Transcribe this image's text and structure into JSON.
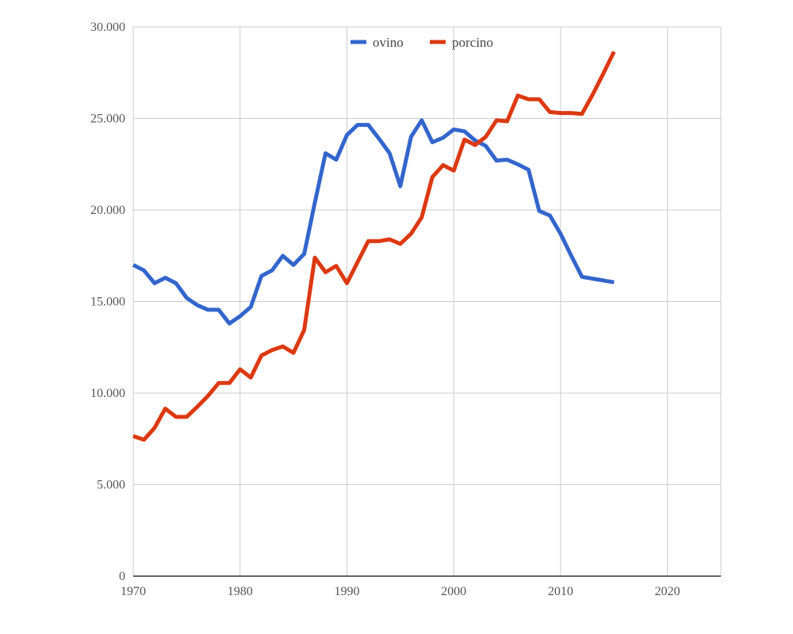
{
  "colors": {
    "background": "#ffffff",
    "grid": "#cccccc",
    "axis": "#333333",
    "ovino": "#3366cc",
    "porcino": "#dc3912"
  },
  "legend": {
    "placement": "top-center",
    "items": [
      {
        "label": "ovino",
        "color": "#3366cc"
      },
      {
        "label": "porcino",
        "color": "#dc3912"
      }
    ]
  },
  "chart_data": {
    "type": "line",
    "title": "",
    "xlabel": "",
    "ylabel": "",
    "xlim": [
      1970,
      2025
    ],
    "ylim": [
      0,
      30000
    ],
    "grid": true,
    "x_ticks": [
      1970,
      1980,
      1990,
      2000,
      2010,
      2020
    ],
    "x_tick_labels": [
      "1970",
      "1980",
      "1990",
      "2000",
      "2010",
      "2020"
    ],
    "y_ticks": [
      0,
      5000,
      10000,
      15000,
      20000,
      25000,
      30000
    ],
    "y_tick_labels": [
      "0",
      "5.000",
      "10.000",
      "15.000",
      "20.000",
      "25.000",
      "30.000"
    ],
    "series": [
      {
        "name": "ovino",
        "color": "#3366cc",
        "x": [
          1970,
          1971,
          1972,
          1973,
          1974,
          1975,
          1976,
          1977,
          1978,
          1979,
          1980,
          1981,
          1982,
          1983,
          1984,
          1985,
          1986,
          1987,
          1988,
          1989,
          1990,
          1991,
          1992,
          1993,
          1994,
          1995,
          1996,
          1997,
          1998,
          1999,
          2000,
          2001,
          2002,
          2003,
          2004,
          2005,
          2006,
          2007,
          2008,
          2009,
          2010,
          2011,
          2012,
          2013,
          2014,
          2015
        ],
        "y": [
          17000,
          16700,
          16000,
          16300,
          16000,
          15200,
          14800,
          14550,
          14550,
          13800,
          14200,
          14700,
          16400,
          16700,
          17500,
          17000,
          17600,
          20400,
          23100,
          22750,
          24100,
          24650,
          24650,
          23900,
          23100,
          21300,
          24000,
          24900,
          23700,
          23950,
          24400,
          24300,
          23800,
          23500,
          22700,
          22750,
          22500,
          22200,
          19950,
          19700,
          18700,
          17500,
          16350,
          16250,
          16150,
          16050
        ]
      },
      {
        "name": "porcino",
        "color": "#dc3912",
        "x": [
          1970,
          1971,
          1972,
          1973,
          1974,
          1975,
          1976,
          1977,
          1978,
          1979,
          1980,
          1981,
          1982,
          1983,
          1984,
          1985,
          1986,
          1987,
          1988,
          1989,
          1990,
          1991,
          1992,
          1993,
          1994,
          1995,
          1996,
          1997,
          1998,
          1999,
          2000,
          2001,
          2002,
          2003,
          2004,
          2005,
          2006,
          2007,
          2008,
          2009,
          2010,
          2011,
          2012,
          2013,
          2014,
          2015
        ],
        "y": [
          7650,
          7450,
          8100,
          9150,
          8700,
          8700,
          9250,
          9850,
          10550,
          10550,
          11300,
          10850,
          12050,
          12350,
          12550,
          12200,
          13450,
          17400,
          16600,
          16950,
          16000,
          17150,
          18300,
          18300,
          18400,
          18150,
          18700,
          19600,
          21800,
          22450,
          22150,
          23850,
          23550,
          24000,
          24900,
          24850,
          26250,
          26050,
          26050,
          25350,
          25300,
          25300,
          25250,
          26300,
          27450,
          28650
        ]
      }
    ]
  }
}
